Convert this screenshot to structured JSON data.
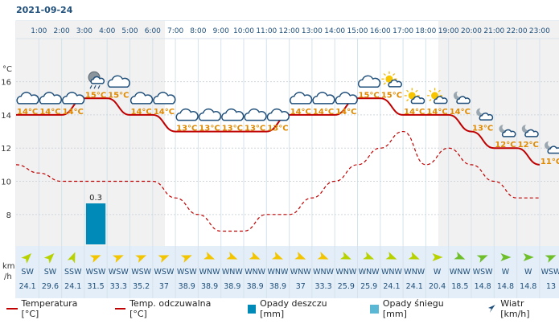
{
  "date_label": "2021-09-24",
  "colors": {
    "temperature": "#c00000",
    "feels_like": "#c00000",
    "rain": "#008ab8",
    "snow": "#5bb8d4",
    "wind_arrow": "#1f4f7a",
    "temp_label": "#e08a00"
  },
  "chart_data": {
    "type": "line",
    "hours": [
      "1:00",
      "2:00",
      "3:00",
      "4:00",
      "5:00",
      "6:00",
      "7:00",
      "8:00",
      "9:00",
      "10:00",
      "11:00",
      "12:00",
      "13:00",
      "14:00",
      "15:00",
      "16:00",
      "17:00",
      "18:00",
      "19:00",
      "20:00",
      "21:00",
      "22:00",
      "23:00"
    ],
    "y_unit": "°C",
    "y_ticks": [
      8,
      10,
      12,
      14,
      16
    ],
    "ylim": [
      6.2,
      18.5
    ],
    "temperature": [
      14,
      14,
      14,
      15,
      15,
      14,
      14,
      13,
      13,
      13,
      13,
      13,
      14,
      14,
      14,
      15,
      15,
      14,
      14,
      14,
      13,
      12,
      12,
      11
    ],
    "temperature_labels": [
      "14°C",
      "14°C",
      "14°C",
      "15°C",
      "15°C",
      "14°C",
      "14°C",
      "13°C",
      "13°C",
      "13°C",
      "13°C",
      "13°C",
      "14°C",
      "14°C",
      "14°C",
      "15°C",
      "15°C",
      "14°C",
      "14°C",
      "14°C",
      "13°C",
      "12°C",
      "12°C",
      "11°C"
    ],
    "feels_like": [
      11,
      10.5,
      10,
      10,
      10,
      10,
      10,
      9,
      8,
      7,
      7,
      8,
      8,
      9,
      10,
      11,
      12,
      13,
      11,
      12,
      11,
      10,
      9,
      9
    ],
    "rain": [
      0,
      0,
      0,
      0.3,
      0,
      0,
      0,
      0,
      0,
      0,
      0,
      0,
      0,
      0,
      0,
      0,
      0,
      0,
      0,
      0,
      0,
      0,
      0,
      0
    ],
    "rain_label": "0.3",
    "weather_icons": [
      "cloud-icon",
      "cloud-icon",
      "cloud-icon",
      "cloud-rain-icon",
      "cloud-icon",
      "cloud-icon",
      "cloud-icon",
      "cloud-icon",
      "cloud-icon",
      "cloud-icon",
      "cloud-icon",
      "cloud-icon",
      "cloud-icon",
      "cloud-icon",
      "cloud-icon",
      "cloud-icon",
      "sun-cloud-icon",
      "sun-cloud-icon",
      "sun-cloud-icon",
      "cloud-moon-icon",
      "cloud-moon-icon",
      "cloud-moon-icon",
      "cloud-moon-icon",
      "cloud-moon-icon"
    ],
    "wind_direction": [
      "SW",
      "SW",
      "SSW",
      "WSW",
      "WSW",
      "WSW",
      "WSW",
      "WSW",
      "WNW",
      "WNW",
      "WNW",
      "WNW",
      "WNW",
      "WNW",
      "WNW",
      "WNW",
      "WNW",
      "WNW",
      "W",
      "WNW",
      "WSW",
      "W",
      "W",
      "WSW"
    ],
    "wind_speed": [
      "24.1",
      "29.6",
      "24.1",
      "31.5",
      "33.3",
      "35.2",
      "37",
      "38.9",
      "38.9",
      "38.9",
      "38.9",
      "38.9",
      "37",
      "33.3",
      "25.9",
      "25.9",
      "24.1",
      "24.1",
      "20.4",
      "18.5",
      "14.8",
      "14.8",
      "14.8",
      "13"
    ],
    "wind_unit": "km\n/h"
  },
  "legend": [
    {
      "label": "Temperatura [°C]",
      "kind": "line"
    },
    {
      "label": "Temp. odczuwalna [°C]",
      "kind": "line"
    },
    {
      "label": "Opady deszczu [mm]",
      "kind": "rain"
    },
    {
      "label": "Opady śniegu [mm]",
      "kind": "snow"
    },
    {
      "label": "Wiatr [km/h]",
      "kind": "wind"
    }
  ]
}
